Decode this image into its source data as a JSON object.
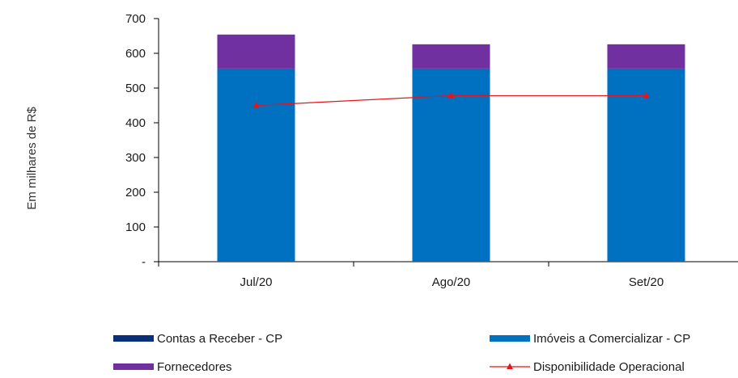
{
  "chart_data": {
    "type": "bar",
    "stacked": true,
    "ylabel": "Em milhares de R$",
    "ylim": [
      0,
      700
    ],
    "yticks": [
      0,
      100,
      200,
      300,
      400,
      500,
      600,
      700
    ],
    "ytick_labels": [
      "-",
      "100",
      "200",
      "300",
      "400",
      "500",
      "600",
      "700"
    ],
    "categories": [
      "Jul/20",
      "Ago/20",
      "Set/20"
    ],
    "series": [
      {
        "name": "Contas a Receber  - CP",
        "kind": "bar",
        "color": "#0a2f7a",
        "values": [
          0,
          0,
          0
        ]
      },
      {
        "name": "Imóveis a Comercializar - CP",
        "kind": "bar",
        "color": "#0070c0",
        "values": [
          556,
          556,
          556
        ]
      },
      {
        "name": "Fornecedores",
        "kind": "bar",
        "color": "#7030a0",
        "values": [
          98,
          70,
          70
        ]
      },
      {
        "name": "Disponibilidade Operacional",
        "kind": "line",
        "color": "#e8141b",
        "marker": "triangle",
        "values": [
          450,
          478,
          478
        ]
      }
    ],
    "grid": false,
    "legend_position": "bottom"
  }
}
